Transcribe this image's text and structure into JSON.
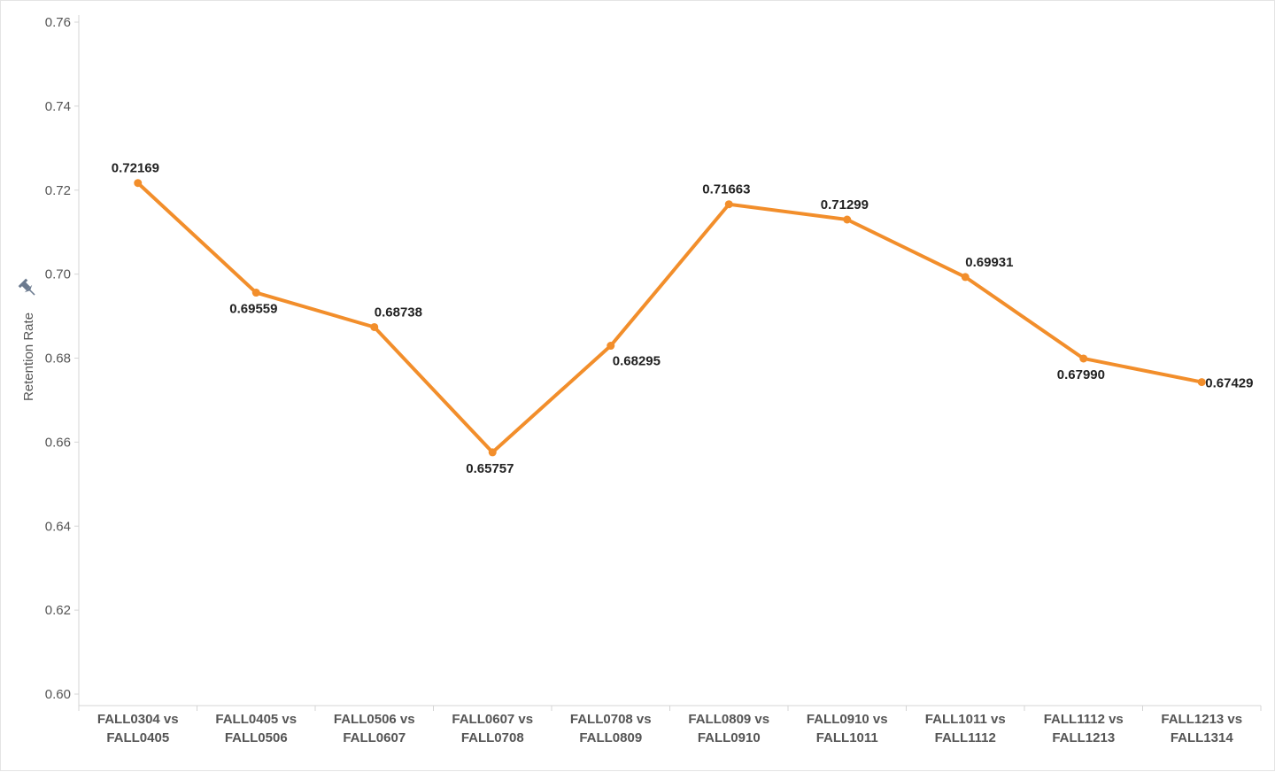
{
  "chart_data": {
    "type": "line",
    "categories": [
      [
        "FALL0304 vs",
        "FALL0405"
      ],
      [
        "FALL0405 vs",
        "FALL0506"
      ],
      [
        "FALL0506 vs",
        "FALL0607"
      ],
      [
        "FALL0607 vs",
        "FALL0708"
      ],
      [
        "FALL0708 vs",
        "FALL0809"
      ],
      [
        "FALL0809 vs",
        "FALL0910"
      ],
      [
        "FALL0910 vs",
        "FALL1011"
      ],
      [
        "FALL1011 vs",
        "FALL1112"
      ],
      [
        "FALL1112 vs",
        "FALL1213"
      ],
      [
        "FALL1213 vs",
        "FALL1314"
      ]
    ],
    "values": [
      0.72169,
      0.69559,
      0.68738,
      0.65757,
      0.68295,
      0.71663,
      0.71299,
      0.69931,
      0.6799,
      0.67429
    ],
    "data_labels": [
      "0.72169",
      "0.69559",
      "0.68738",
      "0.65757",
      "0.68295",
      "0.71663",
      "0.71299",
      "0.69931",
      "0.67990",
      "0.67429"
    ],
    "label_placement": [
      "above",
      "below",
      "above-right",
      "below",
      "below-right",
      "above",
      "above",
      "above-right",
      "below",
      "right"
    ],
    "ylabel": "Retention Rate",
    "ylim": [
      0.6,
      0.76
    ],
    "yticks": [
      0.6,
      0.62,
      0.64,
      0.66,
      0.68,
      0.7,
      0.72,
      0.74,
      0.76
    ],
    "ytick_labels": [
      "0.60",
      "0.62",
      "0.64",
      "0.66",
      "0.68",
      "0.70",
      "0.72",
      "0.74",
      "0.76"
    ],
    "grid": false,
    "line_color": "#f28e2b",
    "axis_color": "#d4d4d4"
  },
  "pin_icon": "pin-icon"
}
